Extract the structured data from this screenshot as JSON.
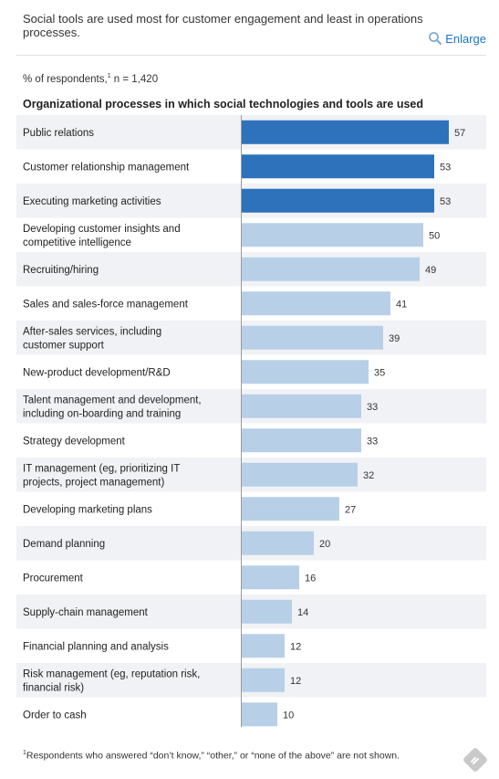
{
  "caption": "Social tools are used most for customer engagement and least in operations processes.",
  "enlarge_label": "Enlarge",
  "subhead": {
    "text": "% of respondents,",
    "footnote_mark": "1",
    "n": " n = 1,420"
  },
  "footnote": {
    "mark": "1",
    "text": "Respondents who answered “don’t know,” “other,” or “none of the above” are not shown."
  },
  "colors": {
    "highlight": "#2d72bb",
    "base": "#b7d0e7",
    "stripe": "#f1f2f5"
  },
  "icons": {
    "enlarge": "search-icon",
    "share": "share-icon"
  },
  "chart_data": {
    "type": "bar",
    "orientation": "horizontal",
    "title": "Organizational processes in which social technologies and tools are used",
    "xlim": [
      0,
      60
    ],
    "categories": [
      [
        "Public relations"
      ],
      [
        "Customer relationship management"
      ],
      [
        "Executing marketing activities"
      ],
      [
        "Developing customer insights and",
        "competitive intelligence"
      ],
      [
        "Recruiting/hiring"
      ],
      [
        "Sales and sales-force management"
      ],
      [
        "After-sales services, including",
        "customer support"
      ],
      [
        "New-product development/R&D"
      ],
      [
        "Talent management and development,",
        "including on-boarding and training"
      ],
      [
        "Strategy development"
      ],
      [
        "IT management (eg, prioritizing IT",
        "projects, project management)"
      ],
      [
        "Developing marketing plans"
      ],
      [
        "Demand planning"
      ],
      [
        "Procurement"
      ],
      [
        "Supply-chain management"
      ],
      [
        "Financial planning and analysis"
      ],
      [
        "Risk management (eg, reputation risk,",
        "financial risk)"
      ],
      [
        "Order to cash"
      ]
    ],
    "values": [
      57,
      53,
      53,
      50,
      49,
      41,
      39,
      35,
      33,
      33,
      32,
      27,
      20,
      16,
      14,
      12,
      12,
      10
    ],
    "highlighted": [
      true,
      true,
      true,
      false,
      false,
      false,
      false,
      false,
      false,
      false,
      false,
      false,
      false,
      false,
      false,
      false,
      false,
      false
    ]
  }
}
